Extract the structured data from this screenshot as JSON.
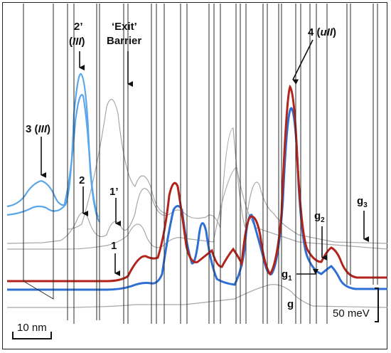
{
  "labels": {
    "state_3": "3 (",
    "state_3_italic": "III",
    "state_3_close": ")",
    "state_2p_top": "2’",
    "state_2p_paren_open": "(",
    "state_2p_italic": "III",
    "state_2p_paren_close": ")",
    "exit_line1": "‘Exit’",
    "exit_line2": "Barrier",
    "state_4": "4 (",
    "state_4_italic": "uII",
    "state_4_close": ")",
    "state_2": "2",
    "state_1p": "1’",
    "state_1": "1",
    "g2_base": "g",
    "g2_sub": "2",
    "g3_base": "g",
    "g3_sub": "3",
    "g1_base": "g",
    "g1_sub": "1",
    "g": "g",
    "energy_scale": "50 meV",
    "length_scale": "10 nm"
  },
  "colors": {
    "red_trace": "#b2231b",
    "blue_trace": "#2e6fd4",
    "light_blue_trace": "#5aa6ea",
    "gray_trace": "#a9a9a9",
    "potential_lines": "#2a2a2a"
  }
}
